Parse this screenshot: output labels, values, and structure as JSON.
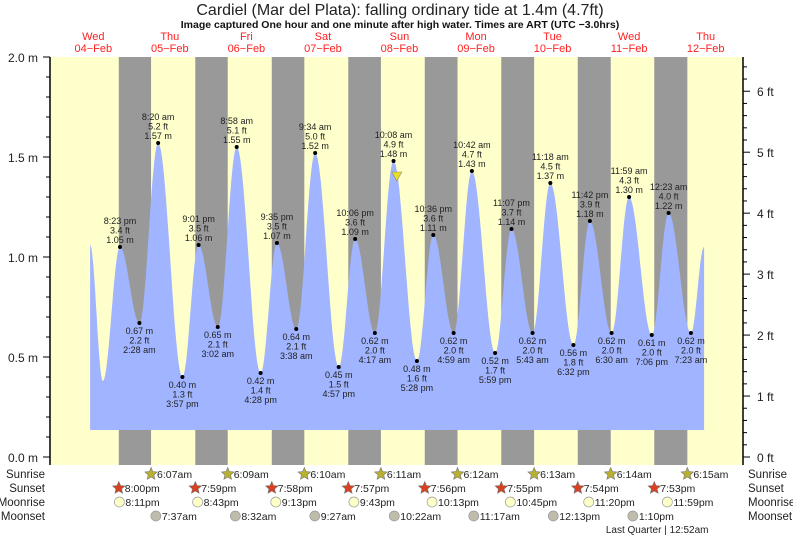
{
  "chart_data": {
    "type": "area",
    "title": "Cardiel (Mar del Plata): falling  ordinary tide at 1.4m (4.7ft)",
    "subtitle": "Image captured One hour and one minute after high water. Times are ART (UTC −3.0hrs)",
    "days": [
      {
        "dow": "Wed",
        "date": "04−Feb"
      },
      {
        "dow": "Thu",
        "date": "05−Feb"
      },
      {
        "dow": "Fri",
        "date": "06−Feb"
      },
      {
        "dow": "Sat",
        "date": "07−Feb"
      },
      {
        "dow": "Sun",
        "date": "08−Feb"
      },
      {
        "dow": "Mon",
        "date": "09−Feb"
      },
      {
        "dow": "Tue",
        "date": "10−Feb"
      },
      {
        "dow": "Wed",
        "date": "11−Feb"
      },
      {
        "dow": "Thu",
        "date": "12−Feb"
      }
    ],
    "y_left": {
      "unit": "m",
      "range": [
        0,
        2.0
      ],
      "tick_labels": [
        "0.0 m",
        "0.5 m",
        "1.0 m",
        "1.5 m",
        "2.0 m"
      ]
    },
    "y_right": {
      "unit": "ft",
      "tick_labels": [
        "0 ft",
        "1 ft",
        "2 ft",
        "3 ft",
        "4 ft",
        "5 ft",
        "6 ft"
      ]
    },
    "curve_start": {
      "day": 0,
      "time": "11:00 am",
      "m": 1.06
    },
    "curve_end": {
      "day": 8,
      "time": "11:30 am",
      "m": 1.05
    },
    "extremes": [
      {
        "day": 0,
        "time": "3:00 pm",
        "type": "low",
        "m": 0.38,
        "labeled": false
      },
      {
        "day": 0,
        "time": "8:23 pm",
        "type": "high",
        "m": 1.05,
        "ft": "3.4 ft",
        "m_label": "1.05 m",
        "labeled": true
      },
      {
        "day": 1,
        "time": "2:28 am",
        "type": "low",
        "m": 0.67,
        "ft": "2.2 ft",
        "m_label": "0.67 m",
        "labeled": true
      },
      {
        "day": 1,
        "time": "8:20 am",
        "type": "high",
        "m": 1.57,
        "ft": "5.2 ft",
        "m_label": "1.57 m",
        "labeled": true
      },
      {
        "day": 1,
        "time": "3:57 pm",
        "type": "low",
        "m": 0.4,
        "ft": "1.3 ft",
        "m_label": "0.40 m",
        "labeled": true
      },
      {
        "day": 1,
        "time": "9:01 pm",
        "type": "high",
        "m": 1.06,
        "ft": "3.5 ft",
        "m_label": "1.06 m",
        "labeled": true
      },
      {
        "day": 2,
        "time": "3:02 am",
        "type": "low",
        "m": 0.65,
        "ft": "2.1 ft",
        "m_label": "0.65 m",
        "labeled": true
      },
      {
        "day": 2,
        "time": "8:58 am",
        "type": "high",
        "m": 1.55,
        "ft": "5.1 ft",
        "m_label": "1.55 m",
        "labeled": true
      },
      {
        "day": 2,
        "time": "4:28 pm",
        "type": "low",
        "m": 0.42,
        "ft": "1.4 ft",
        "m_label": "0.42 m",
        "labeled": true
      },
      {
        "day": 2,
        "time": "9:35 pm",
        "type": "high",
        "m": 1.07,
        "ft": "3.5 ft",
        "m_label": "1.07 m",
        "labeled": true
      },
      {
        "day": 3,
        "time": "3:38 am",
        "type": "low",
        "m": 0.64,
        "ft": "2.1 ft",
        "m_label": "0.64 m",
        "labeled": true
      },
      {
        "day": 3,
        "time": "9:34 am",
        "type": "high",
        "m": 1.52,
        "ft": "5.0 ft",
        "m_label": "1.52 m",
        "labeled": true
      },
      {
        "day": 3,
        "time": "4:57 pm",
        "type": "low",
        "m": 0.45,
        "ft": "1.5 ft",
        "m_label": "0.45 m",
        "labeled": true
      },
      {
        "day": 3,
        "time": "10:06 pm",
        "type": "high",
        "m": 1.09,
        "ft": "3.6 ft",
        "m_label": "1.09 m",
        "labeled": true
      },
      {
        "day": 4,
        "time": "4:17 am",
        "type": "low",
        "m": 0.62,
        "ft": "2.0 ft",
        "m_label": "0.62 m",
        "labeled": true
      },
      {
        "day": 4,
        "time": "10:08 am",
        "type": "high",
        "m": 1.48,
        "ft": "4.9 ft",
        "m_label": "1.48 m",
        "labeled": true
      },
      {
        "day": 4,
        "time": "5:28 pm",
        "type": "low",
        "m": 0.48,
        "ft": "1.6 ft",
        "m_label": "0.48 m",
        "labeled": true
      },
      {
        "day": 4,
        "time": "10:36 pm",
        "type": "high",
        "m": 1.11,
        "ft": "3.6 ft",
        "m_label": "1.11 m",
        "labeled": true
      },
      {
        "day": 5,
        "time": "4:59 am",
        "type": "low",
        "m": 0.62,
        "ft": "2.0 ft",
        "m_label": "0.62 m",
        "labeled": true
      },
      {
        "day": 5,
        "time": "10:42 am",
        "type": "high",
        "m": 1.43,
        "ft": "4.7 ft",
        "m_label": "1.43 m",
        "labeled": true
      },
      {
        "day": 5,
        "time": "5:59 pm",
        "type": "low",
        "m": 0.52,
        "ft": "1.7 ft",
        "m_label": "0.52 m",
        "labeled": true
      },
      {
        "day": 5,
        "time": "11:07 pm",
        "type": "high",
        "m": 1.14,
        "ft": "3.7 ft",
        "m_label": "1.14 m",
        "labeled": true
      },
      {
        "day": 6,
        "time": "5:43 am",
        "type": "low",
        "m": 0.62,
        "ft": "2.0 ft",
        "m_label": "0.62 m",
        "labeled": true
      },
      {
        "day": 6,
        "time": "11:18 am",
        "type": "high",
        "m": 1.37,
        "ft": "4.5 ft",
        "m_label": "1.37 m",
        "labeled": true
      },
      {
        "day": 6,
        "time": "6:32 pm",
        "type": "low",
        "m": 0.56,
        "ft": "1.8 ft",
        "m_label": "0.56 m",
        "labeled": true
      },
      {
        "day": 6,
        "time": "11:42 pm",
        "type": "high",
        "m": 1.18,
        "ft": "3.9 ft",
        "m_label": "1.18 m",
        "labeled": true
      },
      {
        "day": 7,
        "time": "6:30 am",
        "type": "low",
        "m": 0.62,
        "ft": "2.0 ft",
        "m_label": "0.62 m",
        "labeled": true
      },
      {
        "day": 7,
        "time": "11:59 am",
        "type": "high",
        "m": 1.3,
        "ft": "4.3 ft",
        "m_label": "1.30 m",
        "labeled": true
      },
      {
        "day": 7,
        "time": "7:06 pm",
        "type": "low",
        "m": 0.61,
        "ft": "2.0 ft",
        "m_label": "0.61 m",
        "labeled": true
      },
      {
        "day": 8,
        "time": "12:23 am",
        "type": "high",
        "m": 1.22,
        "ft": "4.0 ft",
        "m_label": "1.22 m",
        "labeled": true
      },
      {
        "day": 8,
        "time": "7:23 am",
        "type": "low",
        "m": 0.62,
        "ft": "2.0 ft",
        "m_label": "0.62 m",
        "labeled": true
      }
    ],
    "current": {
      "day": 4,
      "time": "11:09 am",
      "m": 1.4
    },
    "rows": {
      "sunrise": "Sunrise",
      "sunset": "Sunset",
      "moonrise": "Moonrise",
      "moonset": "Moonset"
    },
    "sunrise": [
      {
        "day": 1,
        "time": "6:07am"
      },
      {
        "day": 2,
        "time": "6:09am"
      },
      {
        "day": 3,
        "time": "6:10am"
      },
      {
        "day": 4,
        "time": "6:11am"
      },
      {
        "day": 5,
        "time": "6:12am"
      },
      {
        "day": 6,
        "time": "6:13am"
      },
      {
        "day": 7,
        "time": "6:14am"
      },
      {
        "day": 8,
        "time": "6:15am"
      }
    ],
    "sunset": [
      {
        "day": 0,
        "time": "8:00pm"
      },
      {
        "day": 1,
        "time": "7:59pm"
      },
      {
        "day": 2,
        "time": "7:58pm"
      },
      {
        "day": 3,
        "time": "7:57pm"
      },
      {
        "day": 4,
        "time": "7:56pm"
      },
      {
        "day": 5,
        "time": "7:55pm"
      },
      {
        "day": 6,
        "time": "7:54pm"
      },
      {
        "day": 7,
        "time": "7:53pm"
      }
    ],
    "moonrise": [
      {
        "day": 0,
        "time": "8:11pm"
      },
      {
        "day": 1,
        "time": "8:43pm"
      },
      {
        "day": 2,
        "time": "9:13pm"
      },
      {
        "day": 3,
        "time": "9:43pm"
      },
      {
        "day": 4,
        "time": "10:13pm"
      },
      {
        "day": 5,
        "time": "10:45pm"
      },
      {
        "day": 6,
        "time": "11:20pm"
      },
      {
        "day": 7,
        "time": "11:59pm"
      }
    ],
    "moonset": [
      {
        "day": 1,
        "time": "7:37am"
      },
      {
        "day": 2,
        "time": "8:32am"
      },
      {
        "day": 3,
        "time": "9:27am"
      },
      {
        "day": 4,
        "time": "10:22am"
      },
      {
        "day": 5,
        "time": "11:17am"
      },
      {
        "day": 6,
        "time": "12:13pm"
      },
      {
        "day": 7,
        "time": "1:10pm"
      }
    ],
    "moon_phase": {
      "day": 8,
      "time": "12:52am",
      "label": "Last Quarter | 12:52am"
    },
    "colors": {
      "day": "#ffffcc",
      "night": "#999999",
      "water": "#a0b4ff",
      "day_labels": "#ff2020",
      "sunrise": "#b8b030",
      "sunset": "#d84020",
      "moonrise": "#ffffc8",
      "moonset": "#c0bcac",
      "current_marker": "#e8e020"
    }
  }
}
